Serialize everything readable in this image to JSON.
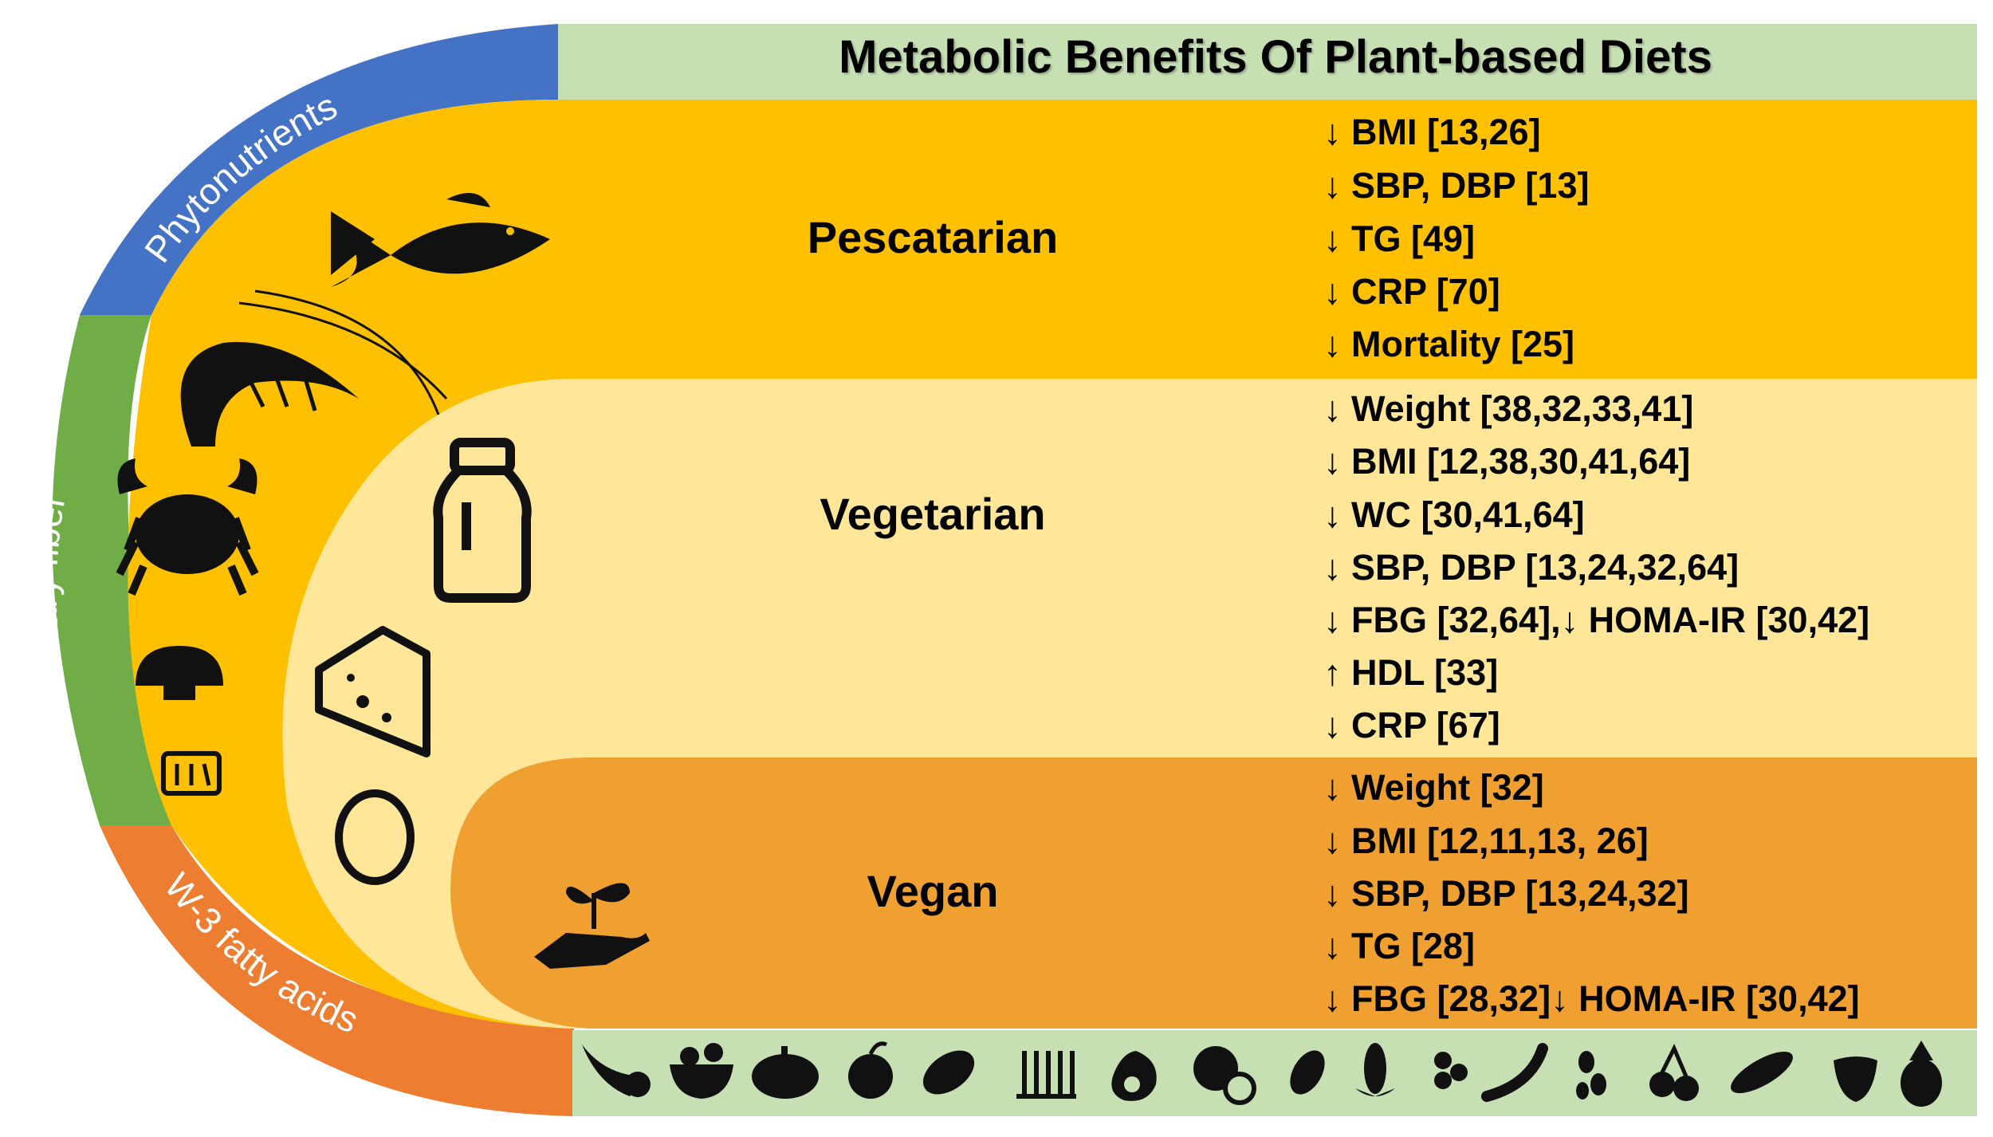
{
  "title": "Metabolic Benefits Of Plant-based Diets",
  "arc_labels": {
    "phytonutrients": "Phytonutrients",
    "dietary_fiber": "Dietary fiber",
    "omega3": "W-3 fatty acids"
  },
  "diets": [
    {
      "name": "Pescatarian",
      "benefits": [
        "↓ BMI [13,26]",
        "↓ SBP, DBP [13]",
        "↓ TG [49]",
        "↓ CRP [70]",
        "↓ Mortality [25]"
      ]
    },
    {
      "name": "Vegetarian",
      "benefits": [
        "↓ Weight [38,32,33,41]",
        "↓ BMI [12,38,30,41,64]",
        "↓ WC [30,41,64]",
        "↓ SBP, DBP [13,24,32,64]",
        "↓ FBG [32,64],↓ HOMA-IR [30,42]",
        "↑ HDL [33]",
        "↓ CRP [67]"
      ]
    },
    {
      "name": "Vegan",
      "benefits": [
        "↓ Weight [32]",
        "↓ BMI [12,11,13, 26]",
        "↓ SBP, DBP [13,24,32]",
        "↓ TG [28]",
        "↓ FBG [28,32]↓ HOMA-IR [30,42]"
      ]
    }
  ],
  "icons": {
    "pescatarian": [
      "fish-icon",
      "shrimp-icon",
      "crab-icon",
      "scallop-icon",
      "canned-fish-icon"
    ],
    "vegetarian": [
      "milk-bottle-icon",
      "cheese-icon",
      "egg-icon"
    ],
    "vegan": [
      "plant-in-hand-icon"
    ],
    "plant_foods": [
      "cornucopia-icon",
      "fruit-bowl-icon",
      "pumpkin-icon",
      "apple-icon",
      "papaya-icon",
      "wheat-icon",
      "avocado-icon",
      "citrus-icon",
      "peanut-icon",
      "corn-icon",
      "berries-icon",
      "chili-icon",
      "beans-icon",
      "cherries-icon",
      "peas-icon",
      "strawberry-icon",
      "pineapple-icon"
    ]
  },
  "colors": {
    "title_bar": "#c6e0b4",
    "phytonutrients": "#4472c4",
    "dietary_fiber": "#70ad47",
    "omega3": "#ed7d31",
    "pescatarian": "#ffc000",
    "vegetarian": "#ffe699",
    "vegan": "#f0a030",
    "icon_strip": "#c6e0b4"
  }
}
